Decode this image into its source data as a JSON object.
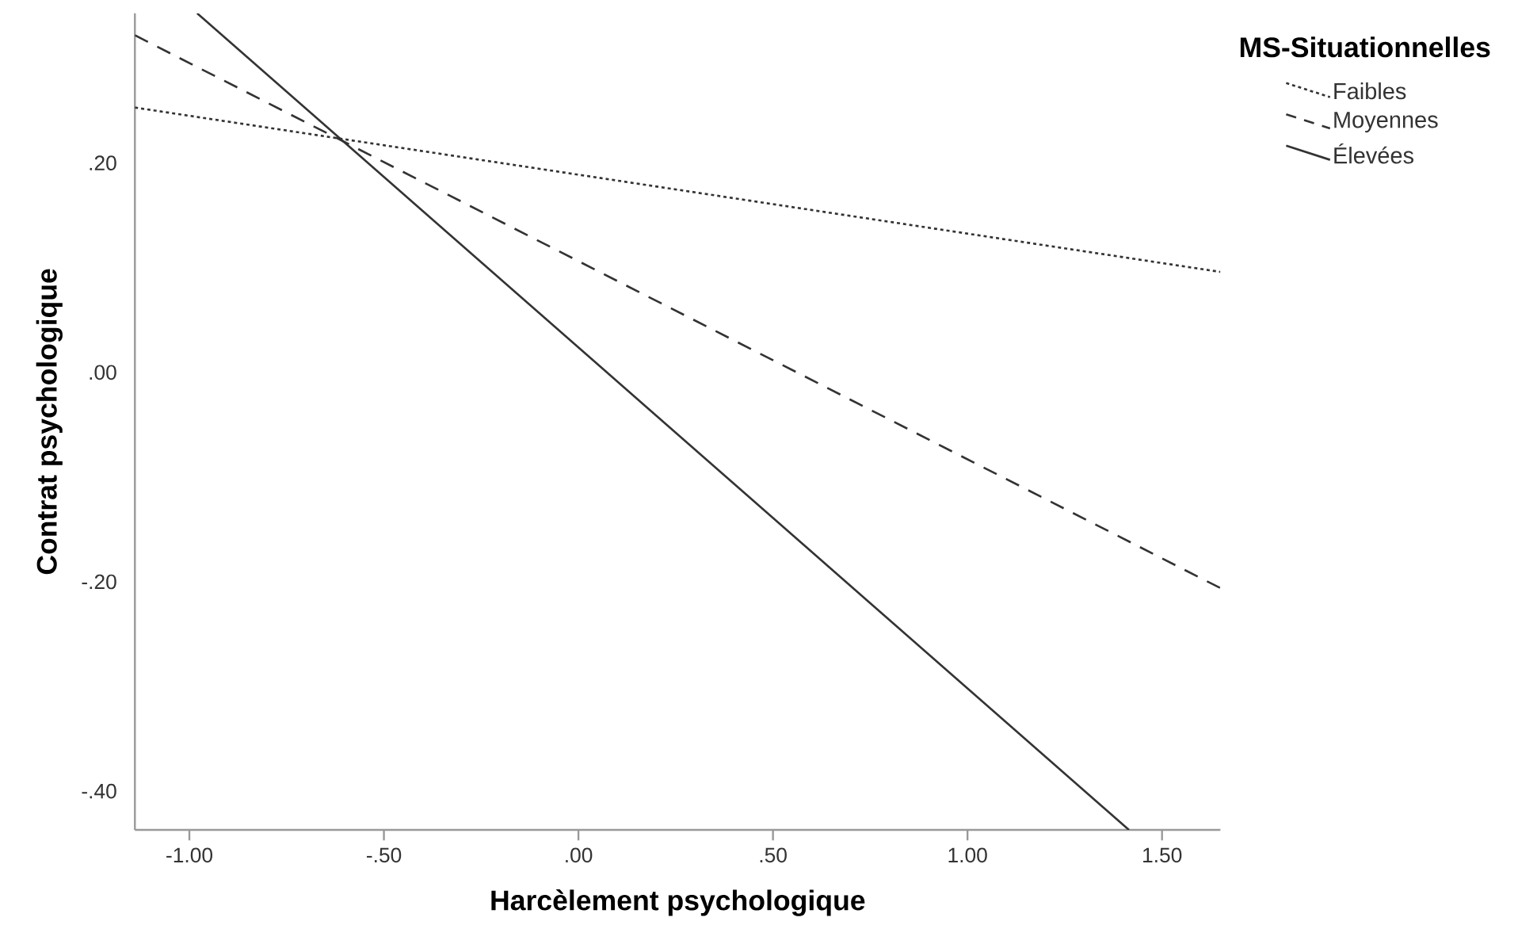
{
  "chart_data": {
    "type": "line",
    "xlabel": "Harcèlement psychologique",
    "ylabel": "Contrat psychologique",
    "legend_title": "MS-Situationnelles",
    "legend": "top right",
    "marker": "none",
    "xlim": [
      -1.14,
      1.65
    ],
    "ylim": [
      -0.437,
      0.343
    ],
    "xticks": [
      {
        "value": -1.0,
        "label": "-1.00"
      },
      {
        "value": -0.5,
        "label": "-.50"
      },
      {
        "value": 0.0,
        "label": ".00"
      },
      {
        "value": 0.5,
        "label": ".50"
      },
      {
        "value": 1.0,
        "label": "1.00"
      },
      {
        "value": 1.5,
        "label": "1.50"
      }
    ],
    "yticks": [
      {
        "value": -0.4,
        "label": "-.40"
      },
      {
        "value": -0.2,
        "label": "-.20"
      },
      {
        "value": 0.0,
        "label": ".00"
      },
      {
        "value": 0.2,
        "label": ".20"
      }
    ],
    "series": [
      {
        "name": "Faibles",
        "color": "#333333",
        "line_style": "dotted",
        "x": [
          -1.14,
          1.65
        ],
        "values": [
          0.253,
          0.096
        ]
      },
      {
        "name": "Moyennes",
        "color": "#333333",
        "line_style": "dashed",
        "x": [
          -1.14,
          1.65
        ],
        "values": [
          0.322,
          -0.206
        ]
      },
      {
        "name": "Élevées",
        "color": "#333333",
        "line_style": "solid",
        "x": [
          -0.98,
          1.415
        ],
        "values": [
          0.343,
          -0.437
        ]
      }
    ]
  }
}
